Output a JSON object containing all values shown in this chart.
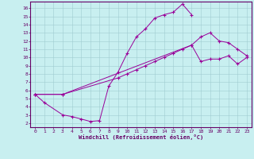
{
  "xlabel": "Windchill (Refroidissement éolien,°C)",
  "bg_color": "#c8eff0",
  "grid_color": "#9fccd0",
  "line_color": "#990099",
  "xlim_min": -0.5,
  "xlim_max": 23.5,
  "ylim_min": 1.5,
  "ylim_max": 16.8,
  "xticks": [
    0,
    1,
    2,
    3,
    4,
    5,
    6,
    7,
    8,
    9,
    10,
    11,
    12,
    13,
    14,
    15,
    16,
    17,
    18,
    19,
    20,
    21,
    22,
    23
  ],
  "yticks": [
    2,
    3,
    4,
    5,
    6,
    7,
    8,
    9,
    10,
    11,
    12,
    13,
    14,
    15,
    16
  ],
  "line1_x": [
    0,
    1,
    3,
    4,
    5,
    6,
    7,
    8,
    9,
    10,
    11,
    12,
    13,
    14,
    15,
    16,
    17
  ],
  "line1_y": [
    5.5,
    4.5,
    3.0,
    2.8,
    2.5,
    2.2,
    2.3,
    6.5,
    8.2,
    10.5,
    12.5,
    13.5,
    14.8,
    15.2,
    15.5,
    16.5,
    15.2
  ],
  "line2_x": [
    0,
    3,
    9,
    10,
    11,
    12,
    13,
    14,
    15,
    16,
    17,
    18,
    19,
    20,
    21,
    22,
    23
  ],
  "line2_y": [
    5.5,
    5.5,
    7.5,
    8.0,
    8.5,
    9.0,
    9.5,
    10.0,
    10.5,
    11.0,
    11.5,
    12.5,
    13.0,
    12.0,
    11.8,
    11.0,
    10.2
  ],
  "line3_x": [
    0,
    3,
    17,
    18,
    19,
    20,
    21,
    22,
    23
  ],
  "line3_y": [
    5.5,
    5.5,
    11.5,
    9.5,
    9.8,
    9.8,
    10.2,
    9.2,
    10.0
  ]
}
